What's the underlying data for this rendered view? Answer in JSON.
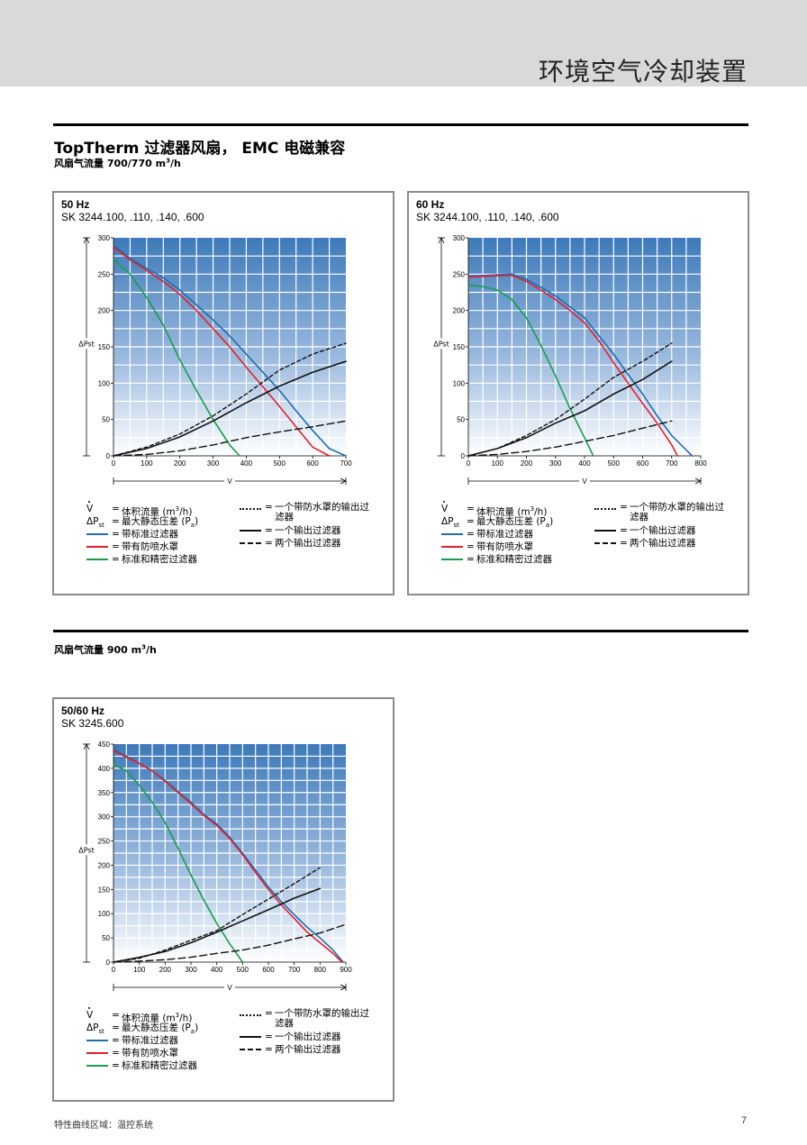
{
  "header": {
    "title": "环境空气冷却装置"
  },
  "section1": {
    "title": "TopTherm 过滤器风扇， EMC 电磁兼容",
    "subtitle_prefix": "风扇气流量 700/770 m",
    "subtitle_sup": "3",
    "subtitle_suffix": "/h"
  },
  "section2": {
    "subtitle_prefix": "风扇气流量 900 m",
    "subtitle_sup": "3",
    "subtitle_suffix": "/h"
  },
  "legend": {
    "v_symbol": "V",
    "dp_symbol": "ΔP",
    "dp_sub": "st",
    "eq": "=",
    "v_text": "体积流量 (m",
    "v_text_sup": "3",
    "v_text_end": "/h)",
    "dp_text": "最大静态压差 (P",
    "dp_text_sub": "a",
    "dp_text_end": ")",
    "blue": "带标准过滤器",
    "red": "带有防喷水罩",
    "green": "标准和精密过滤器",
    "short_dash": "一个带防水罩的输出过",
    "short_dash_2": "滤器",
    "solid": "一个输出过滤器",
    "long_dash": "两个输出过滤器"
  },
  "colors": {
    "blue": "#1f6cb0",
    "red": "#e4202a",
    "green": "#1a9c4b",
    "grid_top": "#3d7ab9",
    "grid_bottom": "#ffffff"
  },
  "footer": {
    "left": "特性曲线区域：温控系统",
    "page": "7"
  },
  "chart_data": [
    {
      "type": "line",
      "hz": "50 Hz",
      "model": "SK 3244.100, .110, .140, .600",
      "xlabel": "V",
      "ylabel": "ΔPst",
      "xlim": [
        0,
        700
      ],
      "ylim": [
        0,
        300
      ],
      "xticks": [
        0,
        100,
        200,
        300,
        400,
        500,
        600,
        700
      ],
      "xtick_labels": [
        "0",
        "100",
        "200",
        "300",
        "400",
        "500",
        "600",
        "700"
      ],
      "yticks": [
        0,
        50,
        100,
        150,
        200,
        250,
        300
      ],
      "xgrid": 50,
      "ygrid": 25,
      "series": [
        {
          "style": "blue",
          "points": [
            [
              0,
              290
            ],
            [
              50,
              272
            ],
            [
              100,
              258
            ],
            [
              150,
              245
            ],
            [
              200,
              228
            ],
            [
              250,
              208
            ],
            [
              300,
              187
            ],
            [
              350,
              165
            ],
            [
              400,
              140
            ],
            [
              450,
              115
            ],
            [
              500,
              90
            ],
            [
              550,
              62
            ],
            [
              600,
              35
            ],
            [
              650,
              10
            ],
            [
              700,
              0
            ]
          ]
        },
        {
          "style": "red",
          "points": [
            [
              0,
              287
            ],
            [
              50,
              270
            ],
            [
              100,
              255
            ],
            [
              150,
              240
            ],
            [
              200,
              222
            ],
            [
              250,
              200
            ],
            [
              300,
              175
            ],
            [
              350,
              150
            ],
            [
              400,
              122
            ],
            [
              450,
              95
            ],
            [
              500,
              68
            ],
            [
              550,
              40
            ],
            [
              600,
              12
            ],
            [
              650,
              0
            ]
          ]
        },
        {
          "style": "green",
          "points": [
            [
              0,
              270
            ],
            [
              50,
              250
            ],
            [
              100,
              218
            ],
            [
              150,
              180
            ],
            [
              200,
              132
            ],
            [
              250,
              90
            ],
            [
              300,
              50
            ],
            [
              350,
              15
            ],
            [
              380,
              0
            ]
          ]
        },
        {
          "style": "short_dash",
          "points": [
            [
              0,
              0
            ],
            [
              100,
              12
            ],
            [
              200,
              30
            ],
            [
              300,
              55
            ],
            [
              400,
              85
            ],
            [
              500,
              118
            ],
            [
              600,
              140
            ],
            [
              700,
              155
            ]
          ]
        },
        {
          "style": "solid",
          "points": [
            [
              0,
              0
            ],
            [
              100,
              10
            ],
            [
              200,
              26
            ],
            [
              300,
              48
            ],
            [
              400,
              73
            ],
            [
              500,
              96
            ],
            [
              600,
              115
            ],
            [
              700,
              130
            ]
          ]
        },
        {
          "style": "long_dash",
          "points": [
            [
              0,
              0
            ],
            [
              100,
              2
            ],
            [
              200,
              7
            ],
            [
              300,
              15
            ],
            [
              400,
              25
            ],
            [
              500,
              33
            ],
            [
              600,
              40
            ],
            [
              700,
              48
            ]
          ]
        }
      ]
    },
    {
      "type": "line",
      "hz": "60 Hz",
      "model": "SK 3244.100, .110, .140, .600",
      "xlabel": "V",
      "ylabel": "ΔPst",
      "xlim": [
        0,
        800
      ],
      "ylim": [
        0,
        300
      ],
      "xticks": [
        0,
        100,
        200,
        300,
        400,
        500,
        600,
        700,
        800
      ],
      "xtick_labels": [
        "0",
        "100",
        "200",
        "300",
        "400",
        "500",
        "600",
        "700",
        "800"
      ],
      "yticks": [
        0,
        50,
        100,
        150,
        200,
        250,
        300
      ],
      "xgrid": 50,
      "ygrid": 25,
      "series": [
        {
          "style": "blue",
          "points": [
            [
              0,
              247
            ],
            [
              50,
              248
            ],
            [
              100,
              249
            ],
            [
              150,
              250
            ],
            [
              200,
              243
            ],
            [
              250,
              232
            ],
            [
              300,
              220
            ],
            [
              350,
              205
            ],
            [
              400,
              190
            ],
            [
              450,
              165
            ],
            [
              500,
              140
            ],
            [
              550,
              112
            ],
            [
              600,
              85
            ],
            [
              650,
              55
            ],
            [
              700,
              28
            ],
            [
              770,
              0
            ]
          ]
        },
        {
          "style": "red",
          "points": [
            [
              0,
              246
            ],
            [
              50,
              247
            ],
            [
              100,
              248
            ],
            [
              150,
              248
            ],
            [
              200,
              240
            ],
            [
              250,
              228
            ],
            [
              300,
              215
            ],
            [
              350,
              200
            ],
            [
              400,
              183
            ],
            [
              450,
              158
            ],
            [
              500,
              128
            ],
            [
              550,
              100
            ],
            [
              600,
              72
            ],
            [
              650,
              45
            ],
            [
              700,
              15
            ],
            [
              720,
              0
            ]
          ]
        },
        {
          "style": "green",
          "points": [
            [
              0,
              235
            ],
            [
              50,
              233
            ],
            [
              100,
              228
            ],
            [
              150,
              215
            ],
            [
              200,
              190
            ],
            [
              250,
              152
            ],
            [
              300,
              110
            ],
            [
              350,
              65
            ],
            [
              400,
              25
            ],
            [
              430,
              0
            ]
          ]
        },
        {
          "style": "short_dash",
          "points": [
            [
              0,
              0
            ],
            [
              100,
              10
            ],
            [
              200,
              28
            ],
            [
              300,
              50
            ],
            [
              400,
              78
            ],
            [
              500,
              108
            ],
            [
              600,
              130
            ],
            [
              700,
              155
            ]
          ]
        },
        {
          "style": "solid",
          "points": [
            [
              0,
              0
            ],
            [
              100,
              10
            ],
            [
              200,
              25
            ],
            [
              300,
              45
            ],
            [
              400,
              62
            ],
            [
              500,
              85
            ],
            [
              600,
              105
            ],
            [
              700,
              130
            ]
          ]
        },
        {
          "style": "long_dash",
          "points": [
            [
              0,
              0
            ],
            [
              100,
              2
            ],
            [
              200,
              6
            ],
            [
              300,
              12
            ],
            [
              400,
              20
            ],
            [
              500,
              28
            ],
            [
              600,
              38
            ],
            [
              700,
              48
            ]
          ]
        }
      ]
    },
    {
      "type": "line",
      "hz": "50/60 Hz",
      "model": "SK 3245.600",
      "xlabel": "V",
      "ylabel": "ΔPst",
      "xlim": [
        0,
        900
      ],
      "ylim": [
        0,
        450
      ],
      "xticks": [
        0,
        100,
        200,
        300,
        400,
        500,
        600,
        700,
        800,
        900
      ],
      "xtick_labels": [
        "0",
        "100",
        "200",
        "300",
        "400",
        "500",
        "600",
        "700",
        "800",
        "900"
      ],
      "yticks": [
        0,
        50,
        100,
        150,
        200,
        250,
        300,
        350,
        400,
        450
      ],
      "xgrid": 50,
      "ygrid": 25,
      "series": [
        {
          "style": "blue",
          "points": [
            [
              0,
              440
            ],
            [
              50,
              425
            ],
            [
              100,
              410
            ],
            [
              150,
              395
            ],
            [
              200,
              375
            ],
            [
              250,
              352
            ],
            [
              300,
              330
            ],
            [
              350,
              305
            ],
            [
              400,
              285
            ],
            [
              450,
              258
            ],
            [
              500,
              225
            ],
            [
              550,
              190
            ],
            [
              600,
              155
            ],
            [
              650,
              125
            ],
            [
              700,
              98
            ],
            [
              750,
              72
            ],
            [
              800,
              50
            ],
            [
              850,
              25
            ],
            [
              890,
              0
            ]
          ]
        },
        {
          "style": "red",
          "points": [
            [
              0,
              437
            ],
            [
              50,
              423
            ],
            [
              100,
              410
            ],
            [
              150,
              395
            ],
            [
              200,
              373
            ],
            [
              250,
              350
            ],
            [
              300,
              327
            ],
            [
              350,
              303
            ],
            [
              400,
              282
            ],
            [
              450,
              255
            ],
            [
              500,
              222
            ],
            [
              550,
              185
            ],
            [
              600,
              150
            ],
            [
              650,
              118
            ],
            [
              700,
              90
            ],
            [
              750,
              62
            ],
            [
              800,
              40
            ],
            [
              850,
              18
            ],
            [
              885,
              0
            ]
          ]
        },
        {
          "style": "green",
          "points": [
            [
              0,
              408
            ],
            [
              50,
              395
            ],
            [
              100,
              365
            ],
            [
              150,
              330
            ],
            [
              200,
              288
            ],
            [
              250,
              235
            ],
            [
              300,
              180
            ],
            [
              350,
              128
            ],
            [
              400,
              80
            ],
            [
              450,
              38
            ],
            [
              500,
              0
            ]
          ]
        },
        {
          "style": "short_dash",
          "points": [
            [
              0,
              0
            ],
            [
              100,
              8
            ],
            [
              200,
              25
            ],
            [
              300,
              45
            ],
            [
              400,
              65
            ],
            [
              500,
              98
            ],
            [
              600,
              130
            ],
            [
              700,
              162
            ],
            [
              800,
              195
            ]
          ]
        },
        {
          "style": "solid",
          "points": [
            [
              0,
              0
            ],
            [
              100,
              10
            ],
            [
              200,
              22
            ],
            [
              300,
              40
            ],
            [
              400,
              62
            ],
            [
              500,
              85
            ],
            [
              600,
              108
            ],
            [
              700,
              132
            ],
            [
              800,
              152
            ]
          ]
        },
        {
          "style": "long_dash",
          "points": [
            [
              0,
              0
            ],
            [
              100,
              2
            ],
            [
              200,
              5
            ],
            [
              300,
              10
            ],
            [
              400,
              18
            ],
            [
              500,
              25
            ],
            [
              600,
              35
            ],
            [
              700,
              48
            ],
            [
              800,
              60
            ],
            [
              900,
              78
            ]
          ]
        }
      ]
    }
  ]
}
